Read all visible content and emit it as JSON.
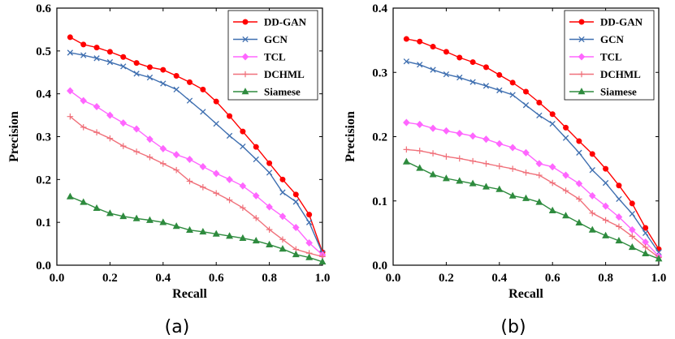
{
  "chart_data": [
    {
      "type": "line",
      "caption": "(a)",
      "xlabel": "Recall",
      "ylabel": "Precision",
      "xlim": [
        0.0,
        1.0
      ],
      "ylim": [
        0.0,
        0.6
      ],
      "xticks": [
        "0.0",
        "0.2",
        "0.4",
        "0.6",
        "0.8",
        "1.0"
      ],
      "yticks": [
        "0.0",
        "0.1",
        "0.2",
        "0.3",
        "0.4",
        "0.5",
        "0.6"
      ],
      "legend_position": "top-right",
      "series": [
        {
          "name": "DD-GAN",
          "color": "#ff0000",
          "marker": "circle",
          "x": [
            0.05,
            0.1,
            0.15,
            0.2,
            0.25,
            0.3,
            0.35,
            0.4,
            0.45,
            0.5,
            0.55,
            0.6,
            0.65,
            0.7,
            0.75,
            0.8,
            0.85,
            0.9,
            0.95,
            1.0
          ],
          "y": [
            0.532,
            0.515,
            0.508,
            0.498,
            0.486,
            0.472,
            0.462,
            0.456,
            0.442,
            0.427,
            0.41,
            0.382,
            0.348,
            0.312,
            0.276,
            0.238,
            0.2,
            0.165,
            0.118,
            0.03
          ]
        },
        {
          "name": "GCN",
          "color": "#3f6fb0",
          "marker": "x",
          "x": [
            0.05,
            0.1,
            0.15,
            0.2,
            0.25,
            0.3,
            0.35,
            0.4,
            0.45,
            0.5,
            0.55,
            0.6,
            0.65,
            0.7,
            0.75,
            0.8,
            0.85,
            0.9,
            0.95,
            1.0
          ],
          "y": [
            0.496,
            0.49,
            0.483,
            0.474,
            0.464,
            0.447,
            0.438,
            0.424,
            0.41,
            0.384,
            0.358,
            0.33,
            0.302,
            0.277,
            0.247,
            0.216,
            0.17,
            0.148,
            0.1,
            0.028
          ]
        },
        {
          "name": "TCL",
          "color": "#ff66ff",
          "marker": "diamond",
          "x": [
            0.05,
            0.1,
            0.15,
            0.2,
            0.25,
            0.3,
            0.35,
            0.4,
            0.45,
            0.5,
            0.55,
            0.6,
            0.65,
            0.7,
            0.75,
            0.8,
            0.85,
            0.9,
            0.95,
            1.0
          ],
          "y": [
            0.407,
            0.384,
            0.37,
            0.35,
            0.332,
            0.318,
            0.294,
            0.272,
            0.258,
            0.247,
            0.23,
            0.214,
            0.2,
            0.185,
            0.162,
            0.136,
            0.114,
            0.088,
            0.052,
            0.024
          ]
        },
        {
          "name": "DCHML",
          "color": "#f0707a",
          "marker": "plus",
          "x": [
            0.05,
            0.1,
            0.15,
            0.2,
            0.25,
            0.3,
            0.35,
            0.4,
            0.45,
            0.5,
            0.55,
            0.6,
            0.65,
            0.7,
            0.75,
            0.8,
            0.85,
            0.9,
            0.95,
            1.0
          ],
          "y": [
            0.347,
            0.322,
            0.31,
            0.296,
            0.278,
            0.265,
            0.252,
            0.237,
            0.222,
            0.196,
            0.182,
            0.168,
            0.152,
            0.134,
            0.11,
            0.083,
            0.06,
            0.037,
            0.028,
            0.02
          ]
        },
        {
          "name": "Siamese",
          "color": "#2e8b3e",
          "marker": "triangle",
          "x": [
            0.05,
            0.1,
            0.15,
            0.2,
            0.25,
            0.3,
            0.35,
            0.4,
            0.45,
            0.5,
            0.55,
            0.6,
            0.65,
            0.7,
            0.75,
            0.8,
            0.85,
            0.9,
            0.95,
            1.0
          ],
          "y": [
            0.16,
            0.147,
            0.133,
            0.121,
            0.114,
            0.109,
            0.105,
            0.1,
            0.091,
            0.082,
            0.078,
            0.073,
            0.068,
            0.063,
            0.057,
            0.048,
            0.038,
            0.025,
            0.018,
            0.008
          ]
        }
      ]
    },
    {
      "type": "line",
      "caption": "(b)",
      "xlabel": "Recall",
      "ylabel": "Precision",
      "xlim": [
        0.0,
        1.0
      ],
      "ylim": [
        0.0,
        0.4
      ],
      "xticks": [
        "0.0",
        "0.2",
        "0.4",
        "0.6",
        "0.8",
        "1.0"
      ],
      "yticks": [
        "0.0",
        "0.1",
        "0.2",
        "0.3",
        "0.4"
      ],
      "legend_position": "top-right",
      "series": [
        {
          "name": "DD-GAN",
          "color": "#ff0000",
          "marker": "circle",
          "x": [
            0.05,
            0.1,
            0.15,
            0.2,
            0.25,
            0.3,
            0.35,
            0.4,
            0.45,
            0.5,
            0.55,
            0.6,
            0.65,
            0.7,
            0.75,
            0.8,
            0.85,
            0.9,
            0.95,
            1.0
          ],
          "y": [
            0.352,
            0.348,
            0.34,
            0.332,
            0.323,
            0.316,
            0.308,
            0.296,
            0.284,
            0.27,
            0.253,
            0.235,
            0.214,
            0.193,
            0.173,
            0.15,
            0.124,
            0.096,
            0.058,
            0.025
          ]
        },
        {
          "name": "GCN",
          "color": "#3f6fb0",
          "marker": "x",
          "x": [
            0.05,
            0.1,
            0.15,
            0.2,
            0.25,
            0.3,
            0.35,
            0.4,
            0.45,
            0.5,
            0.55,
            0.6,
            0.65,
            0.7,
            0.75,
            0.8,
            0.85,
            0.9,
            0.95,
            1.0
          ],
          "y": [
            0.317,
            0.312,
            0.304,
            0.297,
            0.292,
            0.285,
            0.279,
            0.272,
            0.265,
            0.249,
            0.233,
            0.22,
            0.198,
            0.175,
            0.148,
            0.128,
            0.103,
            0.08,
            0.05,
            0.02
          ]
        },
        {
          "name": "TCL",
          "color": "#ff66ff",
          "marker": "diamond",
          "x": [
            0.05,
            0.1,
            0.15,
            0.2,
            0.25,
            0.3,
            0.35,
            0.4,
            0.45,
            0.5,
            0.55,
            0.6,
            0.65,
            0.7,
            0.75,
            0.8,
            0.85,
            0.9,
            0.95,
            1.0
          ],
          "y": [
            0.222,
            0.219,
            0.213,
            0.209,
            0.205,
            0.201,
            0.196,
            0.189,
            0.183,
            0.175,
            0.158,
            0.153,
            0.14,
            0.127,
            0.108,
            0.092,
            0.075,
            0.055,
            0.036,
            0.014
          ]
        },
        {
          "name": "DCHML",
          "color": "#f0707a",
          "marker": "plus",
          "x": [
            0.05,
            0.1,
            0.15,
            0.2,
            0.25,
            0.3,
            0.35,
            0.4,
            0.45,
            0.5,
            0.55,
            0.6,
            0.65,
            0.7,
            0.75,
            0.8,
            0.85,
            0.9,
            0.95,
            1.0
          ],
          "y": [
            0.18,
            0.178,
            0.174,
            0.169,
            0.166,
            0.162,
            0.158,
            0.154,
            0.15,
            0.144,
            0.14,
            0.128,
            0.116,
            0.103,
            0.081,
            0.07,
            0.06,
            0.045,
            0.028,
            0.012
          ]
        },
        {
          "name": "Siamese",
          "color": "#2e8b3e",
          "marker": "triangle",
          "x": [
            0.05,
            0.1,
            0.15,
            0.2,
            0.25,
            0.3,
            0.35,
            0.4,
            0.45,
            0.5,
            0.55,
            0.6,
            0.65,
            0.7,
            0.75,
            0.8,
            0.85,
            0.9,
            0.95,
            1.0
          ],
          "y": [
            0.161,
            0.151,
            0.141,
            0.135,
            0.131,
            0.127,
            0.122,
            0.118,
            0.108,
            0.104,
            0.098,
            0.085,
            0.077,
            0.066,
            0.055,
            0.046,
            0.038,
            0.028,
            0.018,
            0.01
          ]
        }
      ]
    }
  ]
}
